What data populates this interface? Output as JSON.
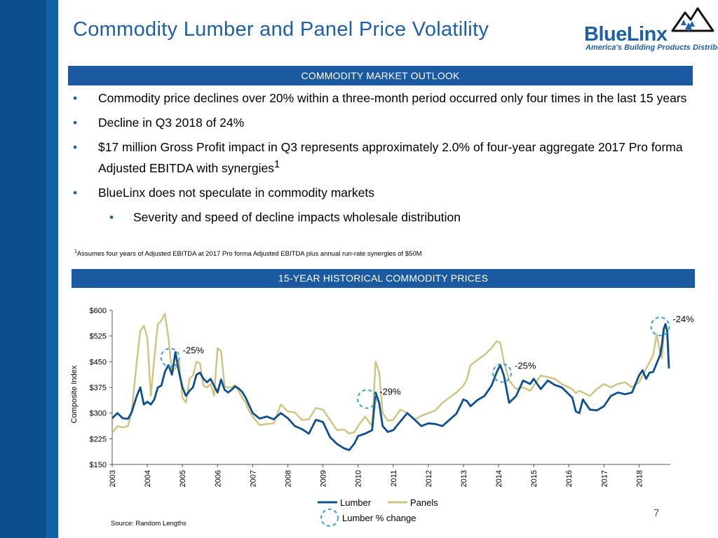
{
  "slide": {
    "title": "Commodity Lumber and Panel Price Volatility",
    "page_number": "7",
    "source": "Source: Random Lengths",
    "footnote_marker": "1",
    "footnote": "Assumes four years of Adjusted EBITDA at 2017 Pro forma Adjusted EBITDA plus annual run-rate synergies of $50M",
    "colors": {
      "brand_blue": "#1f5fa8",
      "bar_blue": "#1b5aa0",
      "sidebar": "#0b4f8f"
    }
  },
  "logo": {
    "name": "BlueLinx",
    "tagline": "America's Building Products Distributor",
    "icon": "mountain-trees-icon"
  },
  "section_outlook": {
    "label": "COMMODITY MARKET OUTLOOK"
  },
  "bullets": [
    {
      "text": "Commodity price declines over 20% within a three-month period occurred only four times in the last 15 years",
      "level": 1
    },
    {
      "text": "Decline in Q3 2018 of 24%",
      "level": 1
    },
    {
      "text": "$17 million Gross Profit impact in Q3 represents approximately 2.0% of four-year aggregate 2017 Pro forma Adjusted EBITDA with synergies",
      "sup": "1",
      "level": 1
    },
    {
      "text": "BlueLinx does not speculate in commodity markets",
      "level": 1
    },
    {
      "text": "Severity and speed of decline impacts wholesale distribution",
      "level": 2
    }
  ],
  "section_chart": {
    "label": "15-YEAR HISTORICAL COMMODITY PRICES"
  },
  "chart_data": {
    "type": "line",
    "ylabel": "Composite Index",
    "ylim": [
      150,
      600
    ],
    "yticks": [
      150,
      225,
      300,
      375,
      450,
      525,
      600
    ],
    "ytick_labels": [
      "$150",
      "$225",
      "$300",
      "$375",
      "$450",
      "$525",
      "$600"
    ],
    "xlim": [
      2003.0,
      2018.85
    ],
    "xticks": [
      2003,
      2004,
      2005,
      2006,
      2007,
      2008,
      2009,
      2010,
      2011,
      2012,
      2013,
      2014,
      2015,
      2016,
      2017,
      2018
    ],
    "xtick_labels": [
      "2003",
      "2004",
      "2005",
      "2006",
      "2007",
      "2008",
      "2009",
      "2010",
      "2011",
      "2012",
      "2013",
      "2014",
      "2015",
      "2016",
      "2017",
      "2018"
    ],
    "series": [
      {
        "name": "Lumber",
        "color": "#0d4f8f",
        "points": [
          [
            2003.0,
            285
          ],
          [
            2003.15,
            300
          ],
          [
            2003.3,
            285
          ],
          [
            2003.45,
            283
          ],
          [
            2003.55,
            302
          ],
          [
            2003.7,
            350
          ],
          [
            2003.8,
            375
          ],
          [
            2003.9,
            325
          ],
          [
            2004.0,
            333
          ],
          [
            2004.1,
            325
          ],
          [
            2004.2,
            340
          ],
          [
            2004.3,
            375
          ],
          [
            2004.4,
            380
          ],
          [
            2004.5,
            420
          ],
          [
            2004.6,
            440
          ],
          [
            2004.7,
            412
          ],
          [
            2004.8,
            478
          ],
          [
            2004.9,
            420
          ],
          [
            2005.0,
            375
          ],
          [
            2005.1,
            350
          ],
          [
            2005.2,
            365
          ],
          [
            2005.3,
            375
          ],
          [
            2005.4,
            412
          ],
          [
            2005.5,
            418
          ],
          [
            2005.6,
            400
          ],
          [
            2005.7,
            390
          ],
          [
            2005.8,
            400
          ],
          [
            2005.9,
            380
          ],
          [
            2006.0,
            360
          ],
          [
            2006.1,
            398
          ],
          [
            2006.2,
            368
          ],
          [
            2006.3,
            360
          ],
          [
            2006.4,
            368
          ],
          [
            2006.5,
            378
          ],
          [
            2006.6,
            372
          ],
          [
            2006.7,
            362
          ],
          [
            2006.8,
            345
          ],
          [
            2006.9,
            322
          ],
          [
            2007.0,
            300
          ],
          [
            2007.2,
            284
          ],
          [
            2007.4,
            290
          ],
          [
            2007.6,
            282
          ],
          [
            2007.8,
            300
          ],
          [
            2008.0,
            285
          ],
          [
            2008.2,
            262
          ],
          [
            2008.4,
            253
          ],
          [
            2008.6,
            240
          ],
          [
            2008.8,
            280
          ],
          [
            2009.0,
            274
          ],
          [
            2009.2,
            230
          ],
          [
            2009.4,
            210
          ],
          [
            2009.6,
            197
          ],
          [
            2009.75,
            192
          ],
          [
            2009.9,
            212
          ],
          [
            2010.0,
            233
          ],
          [
            2010.2,
            240
          ],
          [
            2010.4,
            250
          ],
          [
            2010.5,
            360
          ],
          [
            2010.6,
            330
          ],
          [
            2010.7,
            262
          ],
          [
            2010.85,
            245
          ],
          [
            2011.0,
            250
          ],
          [
            2011.2,
            275
          ],
          [
            2011.4,
            300
          ],
          [
            2011.6,
            282
          ],
          [
            2011.8,
            262
          ],
          [
            2012.0,
            270
          ],
          [
            2012.2,
            268
          ],
          [
            2012.4,
            262
          ],
          [
            2012.6,
            280
          ],
          [
            2012.8,
            298
          ],
          [
            2013.0,
            340
          ],
          [
            2013.1,
            335
          ],
          [
            2013.2,
            320
          ],
          [
            2013.4,
            338
          ],
          [
            2013.6,
            350
          ],
          [
            2013.8,
            380
          ],
          [
            2013.95,
            420
          ],
          [
            2014.05,
            440
          ],
          [
            2014.15,
            410
          ],
          [
            2014.3,
            330
          ],
          [
            2014.5,
            350
          ],
          [
            2014.7,
            395
          ],
          [
            2014.9,
            385
          ],
          [
            2015.0,
            400
          ],
          [
            2015.2,
            370
          ],
          [
            2015.4,
            395
          ],
          [
            2015.6,
            382
          ],
          [
            2015.8,
            375
          ],
          [
            2016.0,
            355
          ],
          [
            2016.1,
            345
          ],
          [
            2016.2,
            305
          ],
          [
            2016.3,
            300
          ],
          [
            2016.4,
            340
          ],
          [
            2016.6,
            310
          ],
          [
            2016.8,
            308
          ],
          [
            2017.0,
            320
          ],
          [
            2017.2,
            350
          ],
          [
            2017.4,
            360
          ],
          [
            2017.6,
            355
          ],
          [
            2017.8,
            360
          ],
          [
            2018.0,
            410
          ],
          [
            2018.1,
            425
          ],
          [
            2018.2,
            400
          ],
          [
            2018.3,
            418
          ],
          [
            2018.4,
            420
          ],
          [
            2018.5,
            445
          ],
          [
            2018.6,
            470
          ],
          [
            2018.65,
            500
          ],
          [
            2018.7,
            545
          ],
          [
            2018.75,
            560
          ],
          [
            2018.8,
            540
          ],
          [
            2018.85,
            430
          ]
        ]
      },
      {
        "name": "Panels",
        "color": "#cfc380",
        "points": [
          [
            2003.0,
            242
          ],
          [
            2003.15,
            262
          ],
          [
            2003.3,
            258
          ],
          [
            2003.45,
            262
          ],
          [
            2003.55,
            300
          ],
          [
            2003.7,
            450
          ],
          [
            2003.8,
            540
          ],
          [
            2003.9,
            555
          ],
          [
            2004.0,
            520
          ],
          [
            2004.1,
            350
          ],
          [
            2004.2,
            460
          ],
          [
            2004.3,
            560
          ],
          [
            2004.4,
            570
          ],
          [
            2004.5,
            590
          ],
          [
            2004.6,
            520
          ],
          [
            2004.7,
            420
          ],
          [
            2004.8,
            430
          ],
          [
            2004.9,
            455
          ],
          [
            2005.0,
            345
          ],
          [
            2005.1,
            330
          ],
          [
            2005.2,
            400
          ],
          [
            2005.3,
            410
          ],
          [
            2005.4,
            450
          ],
          [
            2005.5,
            445
          ],
          [
            2005.6,
            380
          ],
          [
            2005.7,
            375
          ],
          [
            2005.8,
            385
          ],
          [
            2005.9,
            350
          ],
          [
            2006.0,
            490
          ],
          [
            2006.1,
            480
          ],
          [
            2006.2,
            378
          ],
          [
            2006.3,
            375
          ],
          [
            2006.4,
            375
          ],
          [
            2006.5,
            382
          ],
          [
            2006.6,
            365
          ],
          [
            2006.7,
            345
          ],
          [
            2006.8,
            330
          ],
          [
            2006.9,
            305
          ],
          [
            2007.0,
            290
          ],
          [
            2007.2,
            265
          ],
          [
            2007.4,
            268
          ],
          [
            2007.6,
            270
          ],
          [
            2007.8,
            325
          ],
          [
            2008.0,
            305
          ],
          [
            2008.2,
            302
          ],
          [
            2008.4,
            280
          ],
          [
            2008.6,
            282
          ],
          [
            2008.8,
            315
          ],
          [
            2009.0,
            310
          ],
          [
            2009.2,
            280
          ],
          [
            2009.4,
            250
          ],
          [
            2009.6,
            252
          ],
          [
            2009.75,
            240
          ],
          [
            2009.9,
            245
          ],
          [
            2010.0,
            262
          ],
          [
            2010.2,
            290
          ],
          [
            2010.4,
            262
          ],
          [
            2010.5,
            450
          ],
          [
            2010.6,
            420
          ],
          [
            2010.7,
            300
          ],
          [
            2010.85,
            278
          ],
          [
            2011.0,
            280
          ],
          [
            2011.2,
            310
          ],
          [
            2011.4,
            300
          ],
          [
            2011.6,
            280
          ],
          [
            2011.8,
            292
          ],
          [
            2012.0,
            300
          ],
          [
            2012.2,
            308
          ],
          [
            2012.4,
            330
          ],
          [
            2012.6,
            345
          ],
          [
            2012.8,
            360
          ],
          [
            2013.0,
            380
          ],
          [
            2013.1,
            400
          ],
          [
            2013.2,
            440
          ],
          [
            2013.4,
            455
          ],
          [
            2013.6,
            470
          ],
          [
            2013.8,
            490
          ],
          [
            2013.95,
            510
          ],
          [
            2014.05,
            505
          ],
          [
            2014.15,
            450
          ],
          [
            2014.3,
            395
          ],
          [
            2014.5,
            370
          ],
          [
            2014.7,
            375
          ],
          [
            2014.9,
            365
          ],
          [
            2015.0,
            380
          ],
          [
            2015.2,
            410
          ],
          [
            2015.4,
            405
          ],
          [
            2015.6,
            400
          ],
          [
            2015.8,
            385
          ],
          [
            2016.0,
            375
          ],
          [
            2016.1,
            370
          ],
          [
            2016.2,
            358
          ],
          [
            2016.3,
            365
          ],
          [
            2016.4,
            360
          ],
          [
            2016.6,
            350
          ],
          [
            2016.8,
            370
          ],
          [
            2017.0,
            385
          ],
          [
            2017.2,
            375
          ],
          [
            2017.4,
            385
          ],
          [
            2017.6,
            390
          ],
          [
            2017.8,
            375
          ],
          [
            2018.0,
            390
          ],
          [
            2018.1,
            410
          ],
          [
            2018.2,
            430
          ],
          [
            2018.3,
            448
          ],
          [
            2018.4,
            470
          ],
          [
            2018.5,
            530
          ],
          [
            2018.6,
            475
          ],
          [
            2018.65,
            460
          ],
          [
            2018.7,
            525
          ],
          [
            2018.75,
            560
          ],
          [
            2018.8,
            540
          ],
          [
            2018.85,
            480
          ]
        ]
      }
    ],
    "callouts": [
      {
        "x": 2004.65,
        "y": 462,
        "label": "-25%"
      },
      {
        "x": 2010.25,
        "y": 341,
        "label": "-29%"
      },
      {
        "x": 2014.1,
        "y": 417,
        "label": "-25%"
      },
      {
        "x": 2018.6,
        "y": 553,
        "label": "-24%"
      }
    ],
    "legend": {
      "position": "bottom",
      "items": [
        {
          "label": "Lumber",
          "color": "#0d4f8f",
          "kind": "line"
        },
        {
          "label": "Panels",
          "color": "#cfc380",
          "kind": "line"
        },
        {
          "label": "Lumber % change",
          "color": "#3aa0d8",
          "kind": "dashed-circle"
        }
      ]
    }
  }
}
